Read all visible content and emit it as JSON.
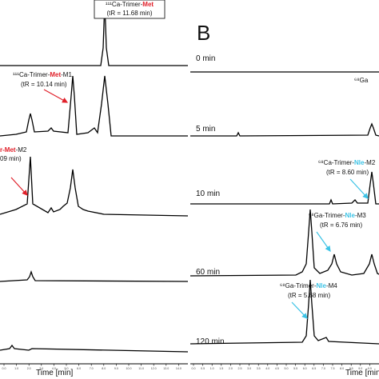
{
  "panel_a": {
    "peak_labels": [
      {
        "prefix": "¹¹¹Ca-Trimer-",
        "residue": "Met",
        "suffix": "",
        "retention": "(tR = 11.68 min)"
      },
      {
        "prefix": "¹¹¹Ca-Trimer-",
        "residue": "Met",
        "suffix": "-M1",
        "retention": "(tR = 10.14 min)"
      },
      {
        "prefix": "r-",
        "residue": "Met",
        "suffix": "-M2",
        "retention": "09 min)"
      }
    ],
    "axis_ticks": [
      "0.0",
      "1.0",
      "2.0",
      "3.0",
      "4.0",
      "5.0",
      "6.0",
      "7.0",
      "8.0",
      "9.0",
      "10.0",
      "11.0",
      "12.0",
      "13.0",
      "14.0"
    ],
    "axis_label": "Time [min]"
  },
  "panel_b": {
    "letter": "B",
    "time_labels": [
      "0 min",
      "5 min",
      "10 min",
      "60 min",
      "120 min"
    ],
    "partial_label": "⁶⁸Ga",
    "peak_labels": [
      {
        "prefix": "⁶⁸Ca-Trimer-",
        "residue": "Nle",
        "suffix": "-M2",
        "retention": "(tR = 8.60 min)"
      },
      {
        "prefix": "⁶⁸Ga-Trimer-",
        "residue": "Nle",
        "suffix": "-M3",
        "retention": "(tR = 6.76 min)"
      },
      {
        "prefix": "⁶⁸Ga-Trimer-",
        "residue": "Nle",
        "suffix": "-M4",
        "retention": "(tR = 5.68 min)"
      }
    ],
    "axis_ticks": [
      "0.0",
      "0.5",
      "1.0",
      "1.5",
      "2.0",
      "2.5",
      "3.0",
      "3.5",
      "4.0",
      "4.5",
      "5.0",
      "5.5",
      "6.0",
      "6.5",
      "7.0",
      "7.5",
      "8.0",
      "8.5",
      "9.0",
      "9.5"
    ],
    "axis_label": "Time [min]"
  }
}
